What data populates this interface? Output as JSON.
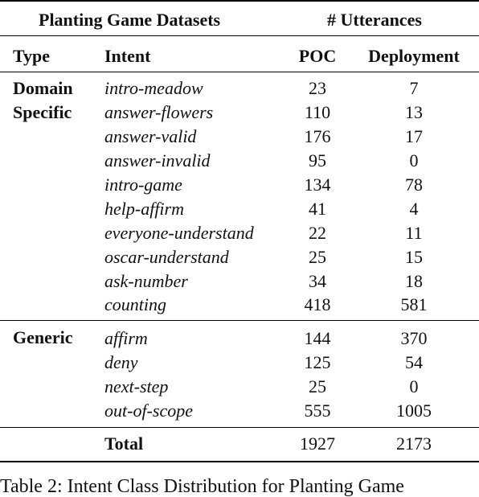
{
  "table": {
    "group_headers": {
      "datasets": "Planting Game Datasets",
      "utterances": "# Utterances"
    },
    "column_headers": {
      "type": "Type",
      "intent": "Intent",
      "poc": "POC",
      "deployment": "Deployment"
    },
    "groups": [
      {
        "type_lines": [
          "Domain",
          "Specific"
        ],
        "rows": [
          {
            "intent": "intro-meadow",
            "poc": "23",
            "deployment": "7"
          },
          {
            "intent": "answer-flowers",
            "poc": "110",
            "deployment": "13"
          },
          {
            "intent": "answer-valid",
            "poc": "176",
            "deployment": "17"
          },
          {
            "intent": "answer-invalid",
            "poc": "95",
            "deployment": "0"
          },
          {
            "intent": "intro-game",
            "poc": "134",
            "deployment": "78"
          },
          {
            "intent": "help-affirm",
            "poc": "41",
            "deployment": "4"
          },
          {
            "intent": "everyone-understand",
            "poc": "22",
            "deployment": "11"
          },
          {
            "intent": "oscar-understand",
            "poc": "25",
            "deployment": "15"
          },
          {
            "intent": "ask-number",
            "poc": "34",
            "deployment": "18"
          },
          {
            "intent": "counting",
            "poc": "418",
            "deployment": "581"
          }
        ]
      },
      {
        "type_lines": [
          "Generic"
        ],
        "rows": [
          {
            "intent": "affirm",
            "poc": "144",
            "deployment": "370"
          },
          {
            "intent": "deny",
            "poc": "125",
            "deployment": "54"
          },
          {
            "intent": "next-step",
            "poc": "25",
            "deployment": "0"
          },
          {
            "intent": "out-of-scope",
            "poc": "555",
            "deployment": "1005"
          }
        ]
      }
    ],
    "total": {
      "label": "Total",
      "poc": "1927",
      "deployment": "2173"
    }
  },
  "caption": "Table 2: Intent Class Distribution for Planting Game"
}
